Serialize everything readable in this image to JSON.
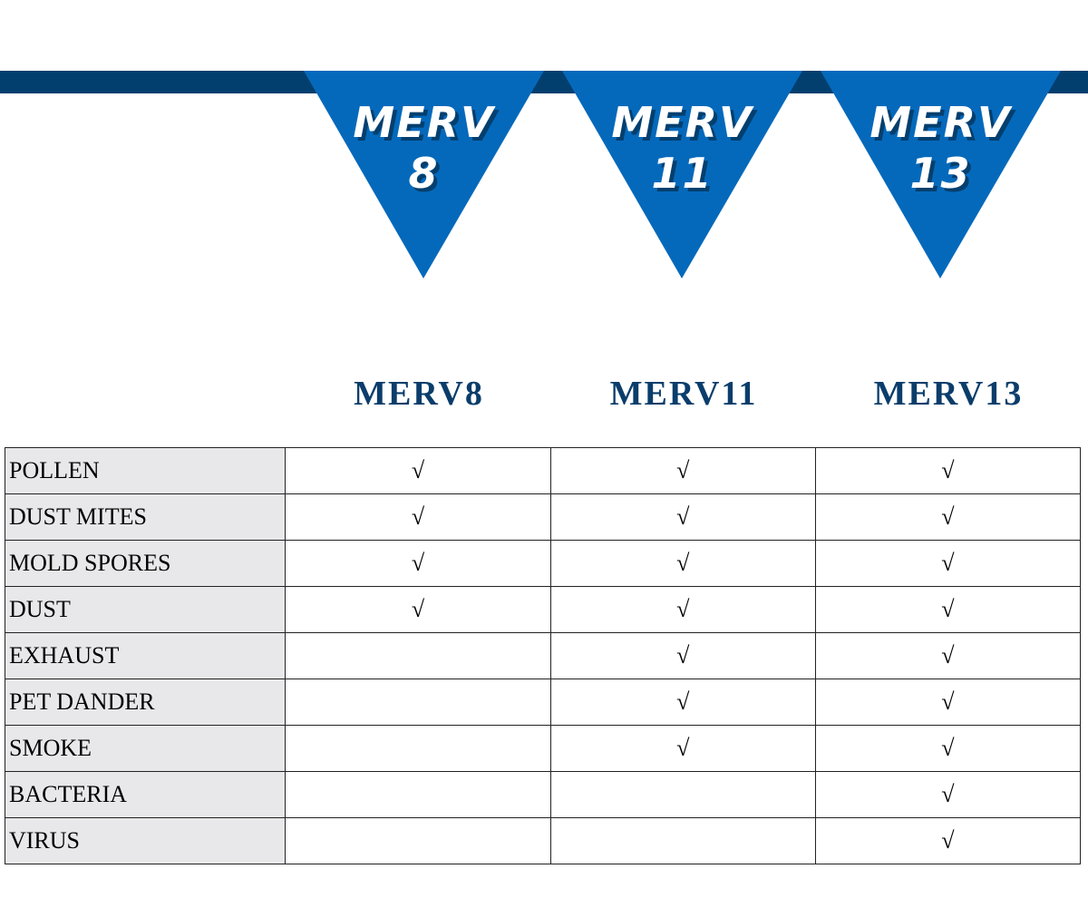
{
  "colors": {
    "band": "#033f6e",
    "triangle": "#0569bb",
    "heading": "#0b3d6b",
    "label_bg": "#e8e8ea"
  },
  "banners": [
    {
      "line1": "MERV",
      "line2": "8"
    },
    {
      "line1": "MERV",
      "line2": "11"
    },
    {
      "line1": "MERV",
      "line2": "13"
    }
  ],
  "columns": [
    "MERV8",
    "MERV11",
    "MERV13"
  ],
  "check_mark": "√",
  "rows": [
    {
      "label": "POLLEN",
      "checks": [
        true,
        true,
        true
      ]
    },
    {
      "label": "DUST MITES",
      "checks": [
        true,
        true,
        true
      ]
    },
    {
      "label": "MOLD SPORES",
      "checks": [
        true,
        true,
        true
      ]
    },
    {
      "label": "DUST",
      "checks": [
        true,
        true,
        true
      ]
    },
    {
      "label": "EXHAUST",
      "checks": [
        false,
        true,
        true
      ]
    },
    {
      "label": "PET DANDER",
      "checks": [
        false,
        true,
        true
      ]
    },
    {
      "label": "SMOKE",
      "checks": [
        false,
        true,
        true
      ]
    },
    {
      "label": "BACTERIA",
      "checks": [
        false,
        false,
        true
      ]
    },
    {
      "label": "VIRUS",
      "checks": [
        false,
        false,
        true
      ]
    }
  ]
}
